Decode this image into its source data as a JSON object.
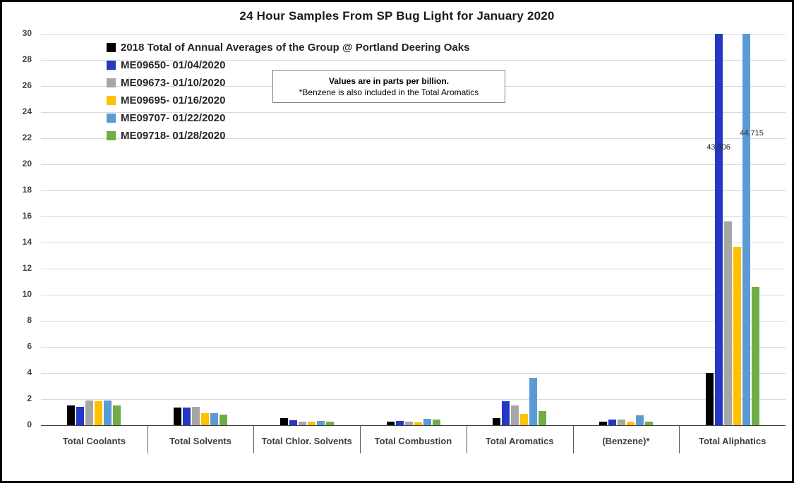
{
  "chart_data": {
    "type": "bar",
    "title": "24 Hour Samples From SP Bug Light for January 2020",
    "xlabel": "",
    "ylabel": "",
    "ylim": [
      0,
      30
    ],
    "ytick_step": 2,
    "grid": true,
    "legend_position": "top-left",
    "note": {
      "line1": "Values are in parts per billion.",
      "line2": "*Benzene is also included in the Total Aromatics"
    },
    "categories": [
      "Total Coolants",
      "Total Solvents",
      "Total Chlor. Solvents",
      "Total Combustion",
      "Total Aromatics",
      "(Benzene)*",
      "Total Aliphatics"
    ],
    "series": [
      {
        "name": "2018 Total of Annual Averages of the Group @ Portland Deering Oaks",
        "color": "#000000",
        "values": [
          1.5,
          1.35,
          0.55,
          0.3,
          0.55,
          0.25,
          4.0
        ]
      },
      {
        "name": "ME09650- 01/04/2020",
        "color": "#2438C4",
        "values": [
          1.4,
          1.35,
          0.4,
          0.35,
          1.85,
          0.45,
          43.306
        ]
      },
      {
        "name": "ME09673- 01/10/2020",
        "color": "#A6A6A6",
        "values": [
          1.9,
          1.4,
          0.3,
          0.3,
          1.5,
          0.45,
          15.6
        ]
      },
      {
        "name": "ME09695- 01/16/2020",
        "color": "#FFC000",
        "values": [
          1.85,
          0.9,
          0.3,
          0.2,
          0.85,
          0.3,
          13.7
        ]
      },
      {
        "name": "ME09707- 01/22/2020",
        "color": "#5B9BD5",
        "values": [
          1.9,
          0.9,
          0.35,
          0.5,
          3.6,
          0.75,
          44.715
        ]
      },
      {
        "name": "ME09718- 01/28/2020",
        "color": "#70AD47",
        "values": [
          1.5,
          0.8,
          0.3,
          0.45,
          1.1,
          0.25,
          10.6
        ]
      }
    ],
    "annotations": [
      {
        "text": "43.306",
        "category_index": 6,
        "series_index": 1,
        "y_value": 21.3,
        "dx": 0
      },
      {
        "text": "44.715",
        "category_index": 6,
        "series_index": 4,
        "y_value": 22.4,
        "dx": 8
      }
    ]
  }
}
